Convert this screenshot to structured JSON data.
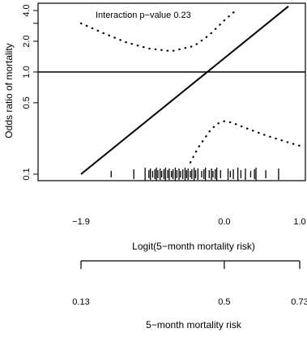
{
  "chart_data": {
    "type": "line",
    "title": "",
    "annotation": "Interaction p−value 0.23",
    "ylabel": "Odds ratio of mortality",
    "y_scale": "log",
    "ylim": [
      0.1,
      4.0
    ],
    "yticks": [
      {
        "value": 0.1,
        "label": "0.1"
      },
      {
        "value": 0.5,
        "label": "0.5"
      },
      {
        "value": 1.0,
        "label": "1.0"
      },
      {
        "value": 2.0,
        "label": "2.0"
      },
      {
        "value": 3.0,
        "label": ""
      },
      {
        "value": 4.0,
        "label": "4.0"
      }
    ],
    "xlabel": "Logit(5−month mortality risk)",
    "xlim": [
      -1.9,
      1.0
    ],
    "xticks": [
      {
        "value": -1.9,
        "label": "−1.9"
      },
      {
        "value": 0.0,
        "label": "0.0"
      },
      {
        "value": 1.0,
        "label": "1.0"
      }
    ],
    "x2label": "5−month mortality risk",
    "x2ticks": [
      {
        "value": -1.9,
        "label": "0.13"
      },
      {
        "value": 0.0,
        "label": "0.5"
      },
      {
        "value": 1.0,
        "label": "0.73"
      }
    ],
    "reference_line": {
      "y": 1.0
    },
    "series": [
      {
        "style": "solid",
        "x": [
          -1.9,
          0.85
        ],
        "y": [
          0.1,
          4.4
        ]
      },
      {
        "style": "dotted",
        "x": [
          -1.9,
          -1.6,
          -1.3,
          -1.0,
          -0.7,
          -0.4,
          -0.2,
          0.0,
          0.15
        ],
        "y": [
          3.0,
          2.4,
          1.95,
          1.7,
          1.6,
          1.8,
          2.3,
          3.2,
          4.0
        ]
      },
      {
        "style": "dotted",
        "x": [
          -0.45,
          -0.35,
          -0.2,
          -0.1,
          0.0,
          0.1,
          0.3,
          0.55,
          0.8,
          1.0
        ],
        "y": [
          0.13,
          0.18,
          0.26,
          0.31,
          0.33,
          0.32,
          0.28,
          0.24,
          0.21,
          0.19
        ]
      }
    ],
    "rug": [
      -1.5,
      -1.2,
      -1.05,
      -1.0,
      -0.98,
      -0.95,
      -0.92,
      -0.9,
      -0.88,
      -0.85,
      -0.83,
      -0.8,
      -0.78,
      -0.75,
      -0.73,
      -0.7,
      -0.68,
      -0.65,
      -0.63,
      -0.6,
      -0.58,
      -0.55,
      -0.52,
      -0.5,
      -0.48,
      -0.45,
      -0.43,
      -0.4,
      -0.38,
      -0.35,
      -0.3,
      -0.27,
      -0.25,
      -0.2,
      -0.17,
      -0.15,
      -0.12,
      -0.1,
      -0.05,
      0.05,
      0.08,
      0.12,
      0.18,
      0.22,
      0.28,
      0.35,
      0.4,
      0.42,
      0.55,
      0.72
    ]
  }
}
